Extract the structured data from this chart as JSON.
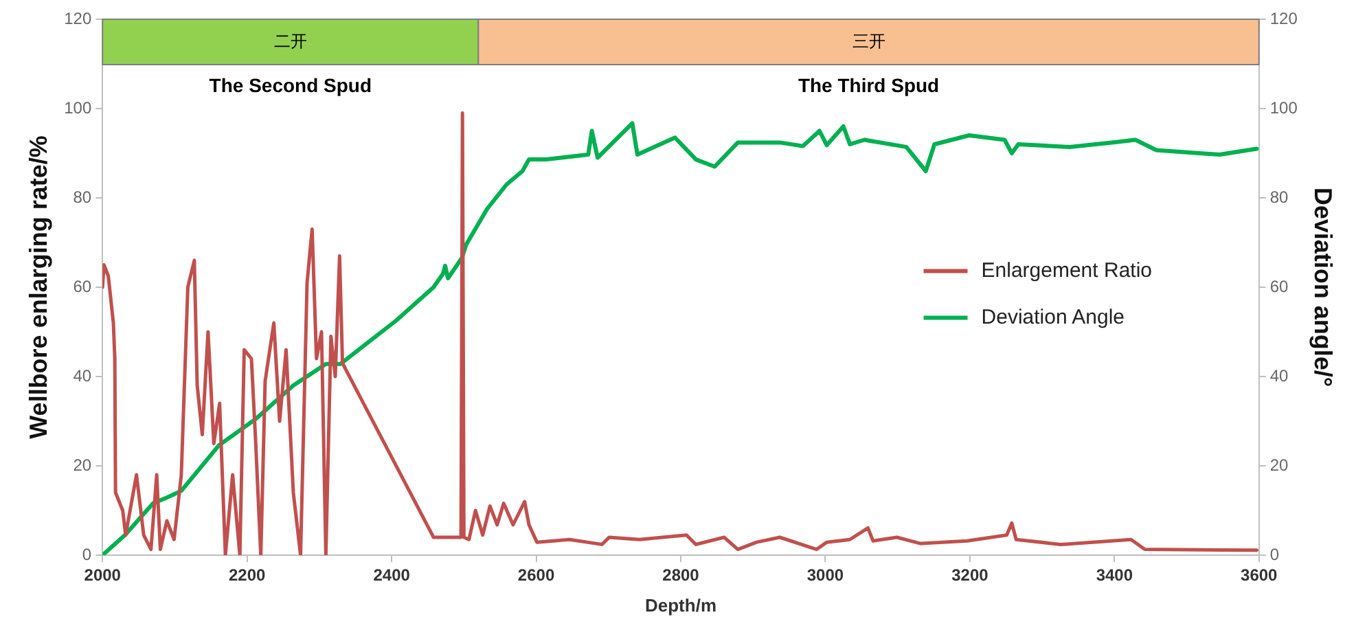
{
  "chart_data": {
    "type": "line",
    "xlabel": "Depth/m",
    "ylabel": "Wellbore enlarging rate/%",
    "y2label": "Deviation angle/°",
    "xlim": [
      2000,
      3600
    ],
    "xticks": [
      2000,
      2200,
      2400,
      2600,
      2800,
      3000,
      3200,
      3400,
      3600
    ],
    "ylim": [
      0,
      120
    ],
    "yticks": [
      0,
      20,
      40,
      60,
      80,
      100,
      120
    ],
    "y2lim": [
      0,
      120
    ],
    "y2ticks": [
      0,
      20,
      40,
      60,
      80,
      100,
      120
    ],
    "grid": false,
    "legend": "right",
    "marker": "none",
    "line_style": "solid",
    "bands": [
      {
        "axis": "x",
        "from": 2000,
        "to": 2520,
        "label": "二开",
        "color": "#92d050"
      },
      {
        "axis": "x",
        "from": 2520,
        "to": 3600,
        "label": "三开",
        "color": "#f8c090"
      }
    ],
    "annotations": [
      "The Second Spud",
      "The Third Spud"
    ],
    "series": [
      {
        "name": "Enlargement Ratio",
        "color": "#c0504d",
        "x": [
          2000,
          2002,
          2008,
          2015,
          2017,
          2018,
          2028,
          2032,
          2047,
          2057,
          2067,
          2075,
          2080,
          2089,
          2099,
          2109,
          2118,
          2127,
          2131,
          2138,
          2146,
          2154,
          2162,
          2170,
          2180,
          2190,
          2196,
          2206,
          2212,
          2219,
          2225,
          2237,
          2245,
          2254,
          2264,
          2274,
          2283,
          2290,
          2296,
          2303,
          2309,
          2316,
          2322,
          2328,
          2332,
          2458,
          2496,
          2498,
          2500,
          2507,
          2516,
          2526,
          2536,
          2546,
          2555,
          2568,
          2584,
          2590,
          2601,
          2646,
          2691,
          2701,
          2743,
          2775,
          2808,
          2821,
          2860,
          2879,
          2905,
          2937,
          2988,
          3002,
          3034,
          3059,
          3066,
          3099,
          3132,
          3196,
          3251,
          3258,
          3264,
          3326,
          3423,
          3442,
          3597
        ],
        "values": [
          60,
          65,
          62.5,
          52,
          44,
          14,
          10,
          4.5,
          18,
          4.5,
          1.3,
          18,
          1.3,
          7.7,
          3.5,
          18,
          60,
          66,
          38,
          27,
          50,
          25,
          34,
          0,
          18,
          0,
          46,
          44,
          25,
          0,
          39,
          52,
          30,
          46,
          14,
          0,
          61,
          73,
          44,
          50,
          0,
          49,
          40,
          67,
          43,
          4,
          4,
          99,
          4,
          3.5,
          10,
          4.5,
          11,
          6.8,
          11.6,
          6.8,
          12,
          6.8,
          2.9,
          3.5,
          2.4,
          4,
          3.5,
          4,
          4.5,
          2.4,
          4,
          1.3,
          2.9,
          4,
          1.3,
          2.9,
          3.5,
          6.1,
          3.2,
          4,
          2.6,
          3.2,
          4.5,
          7.2,
          3.5,
          2.4,
          3.5,
          1.3,
          1.1
        ]
      },
      {
        "name": "Deviation Angle",
        "color": "#00b050",
        "axis": "y2",
        "x": [
          2000,
          2031,
          2070,
          2089,
          2109,
          2161,
          2212,
          2264,
          2309,
          2329,
          2406,
          2458,
          2471,
          2474,
          2478,
          2497,
          2503,
          2532,
          2559,
          2581,
          2590,
          2614,
          2672,
          2677,
          2685,
          2733,
          2740,
          2792,
          2821,
          2847,
          2879,
          2937,
          2969,
          2992,
          3002,
          3025,
          3034,
          3054,
          3112,
          3139,
          3151,
          3199,
          3248,
          3258,
          3267,
          3338,
          3403,
          3429,
          3458,
          3517,
          3546,
          3597
        ],
        "values": [
          0,
          4.5,
          11.6,
          12.9,
          14.4,
          24.6,
          30.5,
          38,
          42.8,
          42.8,
          52.5,
          60,
          63,
          64.8,
          62,
          66.5,
          69.5,
          77.5,
          83,
          86,
          88.6,
          88.6,
          89.7,
          95,
          89,
          96.7,
          89.7,
          93.5,
          88.6,
          87,
          92.4,
          92.4,
          91.6,
          95,
          91.8,
          96,
          92,
          93,
          91.4,
          86,
          92,
          94,
          93,
          90,
          92,
          91.4,
          92.5,
          93,
          90.7,
          90,
          89.7,
          91
        ]
      }
    ]
  }
}
